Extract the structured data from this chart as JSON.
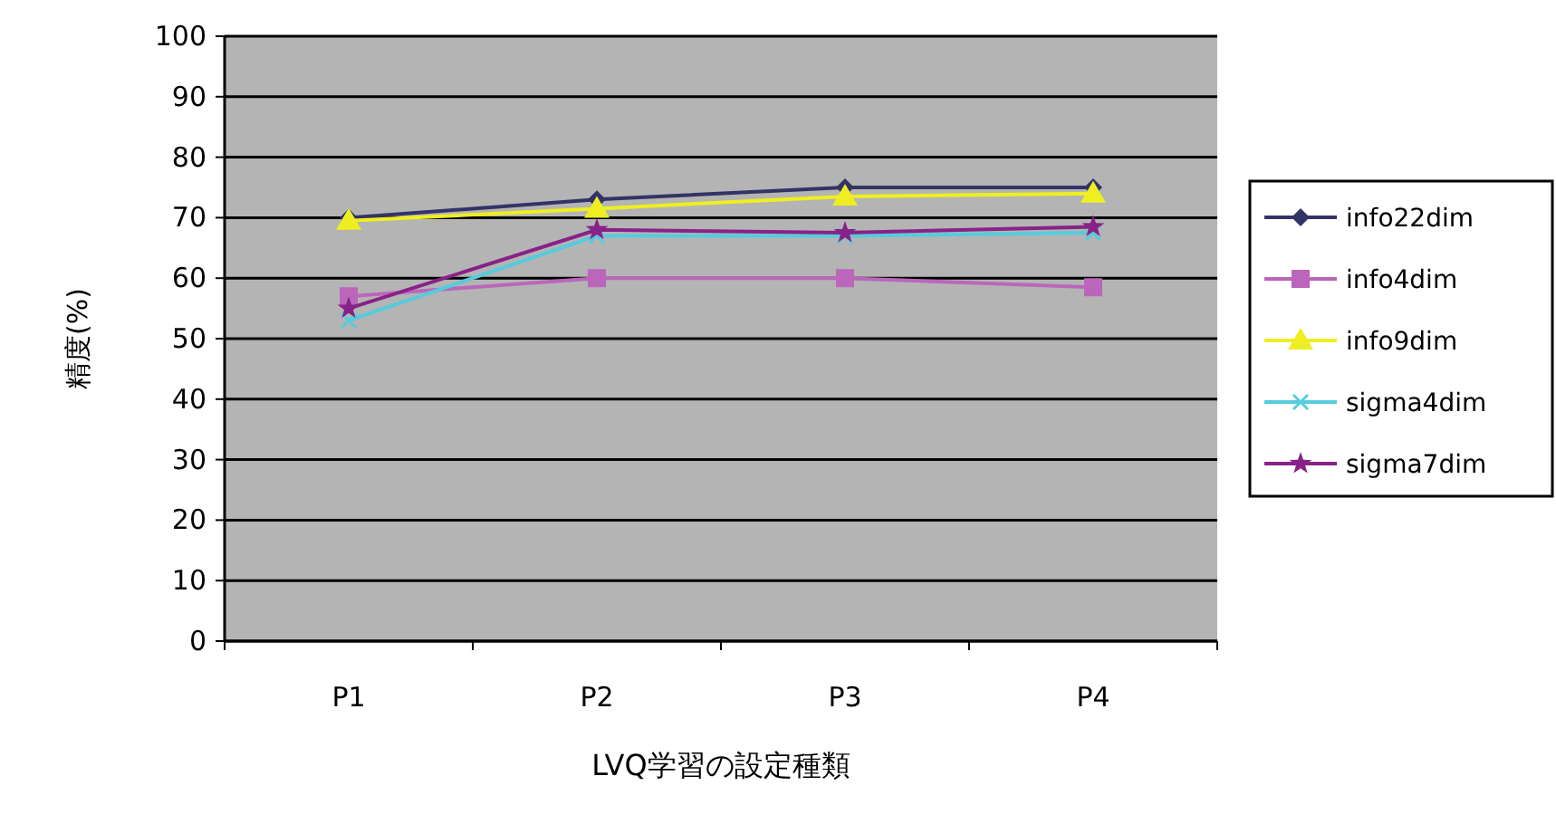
{
  "chart_data": {
    "type": "line",
    "xlabel": "LVQ学習の設定種類",
    "ylabel": "精度(%)",
    "categories": [
      "P1",
      "P2",
      "P3",
      "P4"
    ],
    "series": [
      {
        "name": "info22dim",
        "color": "#333366",
        "marker": "diamond",
        "values": [
          70,
          73,
          75,
          75
        ]
      },
      {
        "name": "info4dim",
        "color": "#bb66bb",
        "marker": "square",
        "values": [
          57,
          60,
          60,
          58.5
        ]
      },
      {
        "name": "info9dim",
        "color": "#eeee22",
        "marker": "triangle",
        "values": [
          69.5,
          71.5,
          73.5,
          74
        ]
      },
      {
        "name": "sigma4dim",
        "color": "#55ccdd",
        "marker": "cross",
        "values": [
          53,
          67,
          67,
          67.5
        ]
      },
      {
        "name": "sigma7dim",
        "color": "#882288",
        "marker": "star",
        "values": [
          55,
          68,
          67.5,
          68.5
        ]
      }
    ],
    "ylim": [
      0,
      100
    ],
    "yticks": [
      0,
      10,
      20,
      30,
      40,
      50,
      60,
      70,
      80,
      90,
      100
    ],
    "grid": "y",
    "legend": "right"
  }
}
